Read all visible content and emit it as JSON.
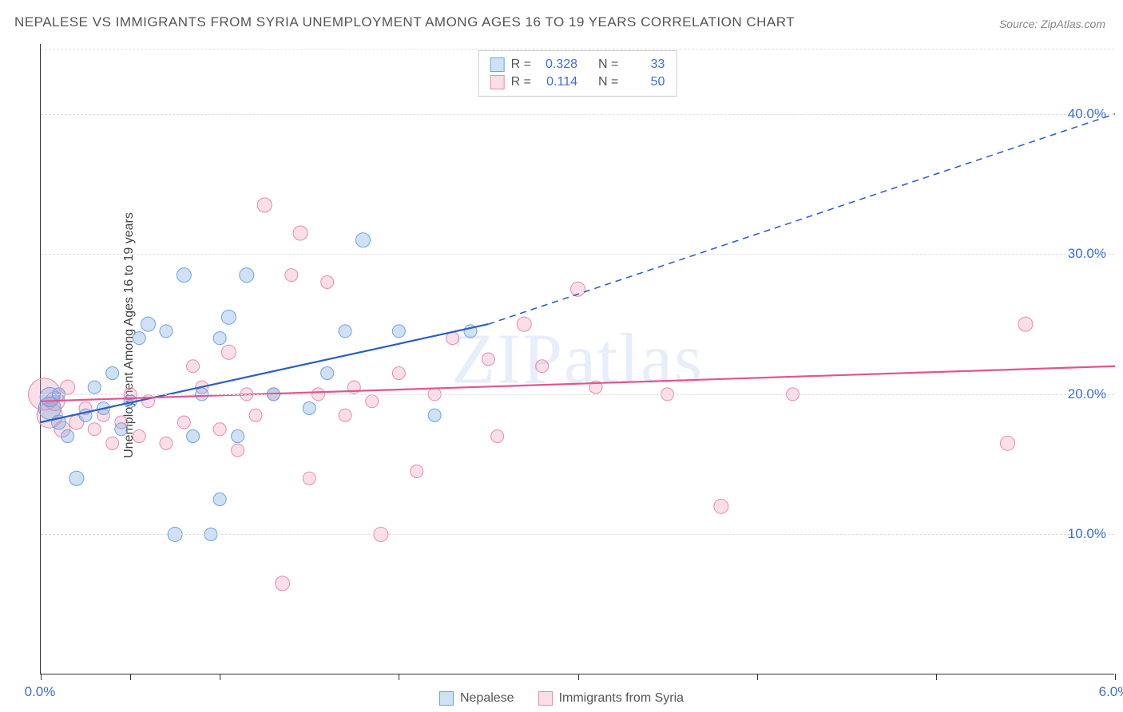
{
  "title": "NEPALESE VS IMMIGRANTS FROM SYRIA UNEMPLOYMENT AMONG AGES 16 TO 19 YEARS CORRELATION CHART",
  "source": "Source: ZipAtlas.com",
  "watermark_bold": "ZIP",
  "watermark_thin": "atlas",
  "ylabel": "Unemployment Among Ages 16 to 19 years",
  "chart": {
    "type": "scatter",
    "xlim": [
      0.0,
      6.0
    ],
    "ylim": [
      0.0,
      45.0
    ],
    "xticks": [
      0,
      0.5,
      1.0,
      2.0,
      3.0,
      4.0,
      5.0,
      6.0
    ],
    "xtick_labels_visible": {
      "0": "0.0%",
      "6": "6.0%"
    },
    "yticks": [
      10.0,
      20.0,
      30.0,
      40.0
    ],
    "ytick_labels": [
      "10.0%",
      "20.0%",
      "30.0%",
      "40.0%"
    ],
    "grid_color": "#dddddd",
    "background_color": "#ffffff",
    "axis_color": "#333333",
    "tick_label_color": "#3b6fd6"
  },
  "series": [
    {
      "name": "Nepalese",
      "color_fill": "rgba(120,170,230,0.35)",
      "color_stroke": "#6aa3e0",
      "marker": "circle",
      "R": "0.328",
      "N": "33",
      "trend": {
        "solid_from": [
          0.0,
          18.0
        ],
        "solid_to": [
          2.5,
          25.0
        ],
        "dash_to": [
          6.0,
          40.0
        ],
        "color": "#2b5fc0",
        "width": 2.2
      },
      "points": [
        {
          "x": 0.05,
          "y": 19.0,
          "r": 14
        },
        {
          "x": 0.05,
          "y": 19.8,
          "r": 12
        },
        {
          "x": 0.1,
          "y": 18.0,
          "r": 9
        },
        {
          "x": 0.1,
          "y": 20.0,
          "r": 8
        },
        {
          "x": 0.15,
          "y": 17.0,
          "r": 8
        },
        {
          "x": 0.2,
          "y": 14.0,
          "r": 9
        },
        {
          "x": 0.25,
          "y": 18.5,
          "r": 8
        },
        {
          "x": 0.3,
          "y": 20.5,
          "r": 8
        },
        {
          "x": 0.35,
          "y": 19.0,
          "r": 8
        },
        {
          "x": 0.4,
          "y": 21.5,
          "r": 8
        },
        {
          "x": 0.45,
          "y": 17.5,
          "r": 8
        },
        {
          "x": 0.5,
          "y": 19.5,
          "r": 8
        },
        {
          "x": 0.55,
          "y": 24.0,
          "r": 8
        },
        {
          "x": 0.6,
          "y": 25.0,
          "r": 9
        },
        {
          "x": 0.7,
          "y": 24.5,
          "r": 8
        },
        {
          "x": 0.75,
          "y": 10.0,
          "r": 9
        },
        {
          "x": 0.8,
          "y": 28.5,
          "r": 9
        },
        {
          "x": 0.85,
          "y": 17.0,
          "r": 8
        },
        {
          "x": 0.9,
          "y": 20.0,
          "r": 8
        },
        {
          "x": 0.95,
          "y": 10.0,
          "r": 8
        },
        {
          "x": 1.0,
          "y": 24.0,
          "r": 8
        },
        {
          "x": 1.0,
          "y": 12.5,
          "r": 8
        },
        {
          "x": 1.05,
          "y": 25.5,
          "r": 9
        },
        {
          "x": 1.1,
          "y": 17.0,
          "r": 8
        },
        {
          "x": 1.15,
          "y": 28.5,
          "r": 9
        },
        {
          "x": 1.3,
          "y": 20.0,
          "r": 8
        },
        {
          "x": 1.5,
          "y": 19.0,
          "r": 8
        },
        {
          "x": 1.6,
          "y": 21.5,
          "r": 8
        },
        {
          "x": 1.7,
          "y": 24.5,
          "r": 8
        },
        {
          "x": 1.8,
          "y": 31.0,
          "r": 9
        },
        {
          "x": 2.0,
          "y": 24.5,
          "r": 8
        },
        {
          "x": 2.2,
          "y": 18.5,
          "r": 8
        },
        {
          "x": 2.4,
          "y": 24.5,
          "r": 8
        }
      ]
    },
    {
      "name": "Immigrants from Syria",
      "color_fill": "rgba(240,150,180,0.30)",
      "color_stroke": "#e88ab0",
      "marker": "circle",
      "R": "0.114",
      "N": "50",
      "trend": {
        "solid_from": [
          0.0,
          19.5
        ],
        "solid_to": [
          6.0,
          22.0
        ],
        "dash_to": null,
        "color": "#e05590",
        "width": 2.2
      },
      "points": [
        {
          "x": 0.02,
          "y": 20.0,
          "r": 20
        },
        {
          "x": 0.05,
          "y": 18.5,
          "r": 16
        },
        {
          "x": 0.08,
          "y": 19.5,
          "r": 12
        },
        {
          "x": 0.12,
          "y": 17.5,
          "r": 10
        },
        {
          "x": 0.15,
          "y": 20.5,
          "r": 9
        },
        {
          "x": 0.2,
          "y": 18.0,
          "r": 9
        },
        {
          "x": 0.25,
          "y": 19.0,
          "r": 8
        },
        {
          "x": 0.3,
          "y": 17.5,
          "r": 8
        },
        {
          "x": 0.35,
          "y": 18.5,
          "r": 8
        },
        {
          "x": 0.4,
          "y": 16.5,
          "r": 8
        },
        {
          "x": 0.45,
          "y": 18.0,
          "r": 8
        },
        {
          "x": 0.5,
          "y": 20.0,
          "r": 8
        },
        {
          "x": 0.55,
          "y": 17.0,
          "r": 8
        },
        {
          "x": 0.6,
          "y": 19.5,
          "r": 8
        },
        {
          "x": 0.7,
          "y": 16.5,
          "r": 8
        },
        {
          "x": 0.8,
          "y": 18.0,
          "r": 8
        },
        {
          "x": 0.85,
          "y": 22.0,
          "r": 8
        },
        {
          "x": 0.9,
          "y": 20.5,
          "r": 8
        },
        {
          "x": 1.0,
          "y": 17.5,
          "r": 8
        },
        {
          "x": 1.05,
          "y": 23.0,
          "r": 9
        },
        {
          "x": 1.1,
          "y": 16.0,
          "r": 8
        },
        {
          "x": 1.15,
          "y": 20.0,
          "r": 8
        },
        {
          "x": 1.2,
          "y": 18.5,
          "r": 8
        },
        {
          "x": 1.25,
          "y": 33.5,
          "r": 9
        },
        {
          "x": 1.3,
          "y": 20.0,
          "r": 8
        },
        {
          "x": 1.35,
          "y": 6.5,
          "r": 9
        },
        {
          "x": 1.4,
          "y": 28.5,
          "r": 8
        },
        {
          "x": 1.45,
          "y": 31.5,
          "r": 9
        },
        {
          "x": 1.5,
          "y": 14.0,
          "r": 8
        },
        {
          "x": 1.55,
          "y": 20.0,
          "r": 8
        },
        {
          "x": 1.6,
          "y": 28.0,
          "r": 8
        },
        {
          "x": 1.7,
          "y": 18.5,
          "r": 8
        },
        {
          "x": 1.75,
          "y": 20.5,
          "r": 8
        },
        {
          "x": 1.85,
          "y": 19.5,
          "r": 8
        },
        {
          "x": 1.9,
          "y": 10.0,
          "r": 9
        },
        {
          "x": 2.0,
          "y": 21.5,
          "r": 8
        },
        {
          "x": 2.1,
          "y": 14.5,
          "r": 8
        },
        {
          "x": 2.2,
          "y": 20.0,
          "r": 8
        },
        {
          "x": 2.3,
          "y": 24.0,
          "r": 8
        },
        {
          "x": 2.5,
          "y": 22.5,
          "r": 8
        },
        {
          "x": 2.55,
          "y": 17.0,
          "r": 8
        },
        {
          "x": 2.7,
          "y": 25.0,
          "r": 9
        },
        {
          "x": 2.8,
          "y": 22.0,
          "r": 8
        },
        {
          "x": 3.0,
          "y": 27.5,
          "r": 9
        },
        {
          "x": 3.1,
          "y": 20.5,
          "r": 8
        },
        {
          "x": 3.5,
          "y": 20.0,
          "r": 8
        },
        {
          "x": 3.8,
          "y": 12.0,
          "r": 9
        },
        {
          "x": 4.2,
          "y": 20.0,
          "r": 8
        },
        {
          "x": 5.4,
          "y": 16.5,
          "r": 9
        },
        {
          "x": 5.5,
          "y": 25.0,
          "r": 9
        }
      ]
    }
  ],
  "legend_labels": {
    "r_prefix": "R =",
    "n_prefix": "N ="
  }
}
